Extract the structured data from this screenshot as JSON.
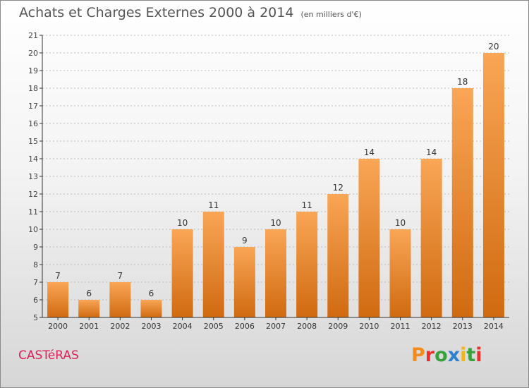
{
  "title": "Achats et Charges Externes 2000 à 2014",
  "subtitle": "(en milliers d'€)",
  "commune": "CASTéRAS",
  "logo": {
    "text": "Proxiti",
    "colors": [
      "#f28c1e",
      "#e8302e",
      "#3aa03c",
      "#2d7fd0",
      "#f2b31c",
      "#3aa03c",
      "#e8302e"
    ]
  },
  "colors": {
    "bar_top": "#f9a656",
    "bar_bottom": "#d06a10",
    "axis": "#333333",
    "grid": "#bbbbbb"
  },
  "chart_data": {
    "type": "bar",
    "categories": [
      "2000",
      "2001",
      "2002",
      "2003",
      "2004",
      "2005",
      "2006",
      "2007",
      "2008",
      "2009",
      "2010",
      "2011",
      "2012",
      "2013",
      "2014"
    ],
    "values": [
      7,
      6,
      7,
      6,
      10,
      11,
      9,
      10,
      11,
      12,
      14,
      10,
      14,
      18,
      20
    ],
    "ylim": [
      5,
      21
    ],
    "yticks": [
      5,
      6,
      7,
      8,
      9,
      10,
      11,
      12,
      13,
      14,
      15,
      16,
      17,
      18,
      19,
      20,
      21
    ],
    "title": "Achats et Charges Externes 2000 à 2014",
    "subtitle": "(en milliers d'€)",
    "grid": true,
    "legend": "none"
  }
}
